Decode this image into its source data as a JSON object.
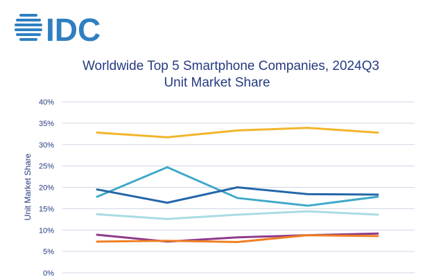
{
  "logo": {
    "text": "IDC",
    "color": "#2f7fc1"
  },
  "chart_data": {
    "type": "line",
    "title": "Worldwide Top 5 Smartphone Companies, 2024Q3",
    "subtitle": "Unit Market Share",
    "xlabel": "",
    "ylabel": "Unit Market Share",
    "ylim": [
      0,
      40
    ],
    "yticks": [
      "0%",
      "5%",
      "10%",
      "15%",
      "20%",
      "25%",
      "30%",
      "35%",
      "40%"
    ],
    "grid": true,
    "x": [
      1,
      2,
      3,
      4,
      5
    ],
    "series": [
      {
        "color": "#f2b52a",
        "values": [
          32.8,
          31.7,
          33.3,
          33.9,
          32.8
        ]
      },
      {
        "color": "#3fa9c9",
        "values": [
          17.8,
          24.7,
          17.5,
          15.7,
          17.8
        ]
      },
      {
        "color": "#2466a8",
        "values": [
          19.5,
          16.4,
          20.0,
          18.4,
          18.3
        ]
      },
      {
        "color": "#a9dbe4",
        "values": [
          13.7,
          12.6,
          13.6,
          14.4,
          13.6
        ]
      },
      {
        "color": "#8e3a8a",
        "values": [
          8.9,
          7.3,
          8.3,
          8.8,
          9.2
        ]
      },
      {
        "color": "#f07f23",
        "values": [
          7.3,
          7.5,
          7.2,
          8.8,
          8.6
        ]
      }
    ]
  }
}
